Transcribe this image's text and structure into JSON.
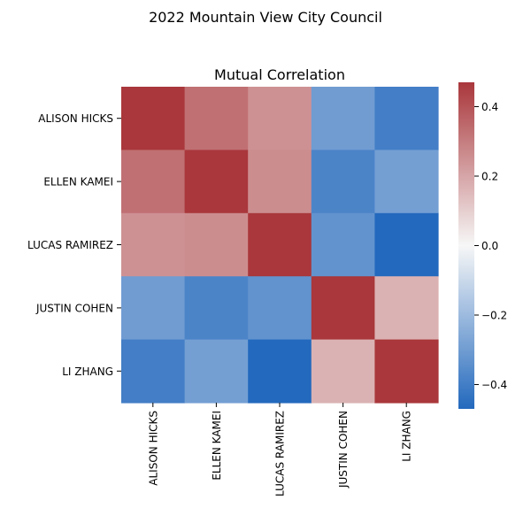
{
  "chart_data": {
    "type": "heatmap",
    "suptitle": "2022 Mountain View City Council",
    "title": "Mutual Correlation",
    "xlabel": "",
    "ylabel": "",
    "rows": [
      "ALISON HICKS",
      "ELLEN KAMEI",
      "LUCAS RAMIREZ",
      "JUSTIN COHEN",
      "LI ZHANG"
    ],
    "columns": [
      "ALISON HICKS",
      "ELLEN KAMEI",
      "LUCAS RAMIREZ",
      "JUSTIN COHEN",
      "LI ZHANG"
    ],
    "values": [
      [
        0.47,
        0.33,
        0.25,
        -0.3,
        -0.4
      ],
      [
        0.33,
        0.47,
        0.26,
        -0.38,
        -0.29
      ],
      [
        0.25,
        0.26,
        0.47,
        -0.33,
        -0.47
      ],
      [
        -0.3,
        -0.38,
        -0.33,
        0.47,
        0.17
      ],
      [
        -0.4,
        -0.29,
        -0.47,
        0.17,
        0.47
      ]
    ],
    "colorbar": {
      "min": -0.47,
      "max": 0.47,
      "ticks": [
        -0.4,
        -0.2,
        0.0,
        0.2,
        0.4
      ],
      "tick_labels": [
        "−0.4",
        "−0.2",
        "0.0",
        "0.2",
        "0.4"
      ],
      "colormap": "vlag",
      "low_color": "#2369bd",
      "mid_color": "#f7f7f7",
      "high_color": "#a9373b"
    },
    "grid": false,
    "legend": "colorbar-right"
  }
}
